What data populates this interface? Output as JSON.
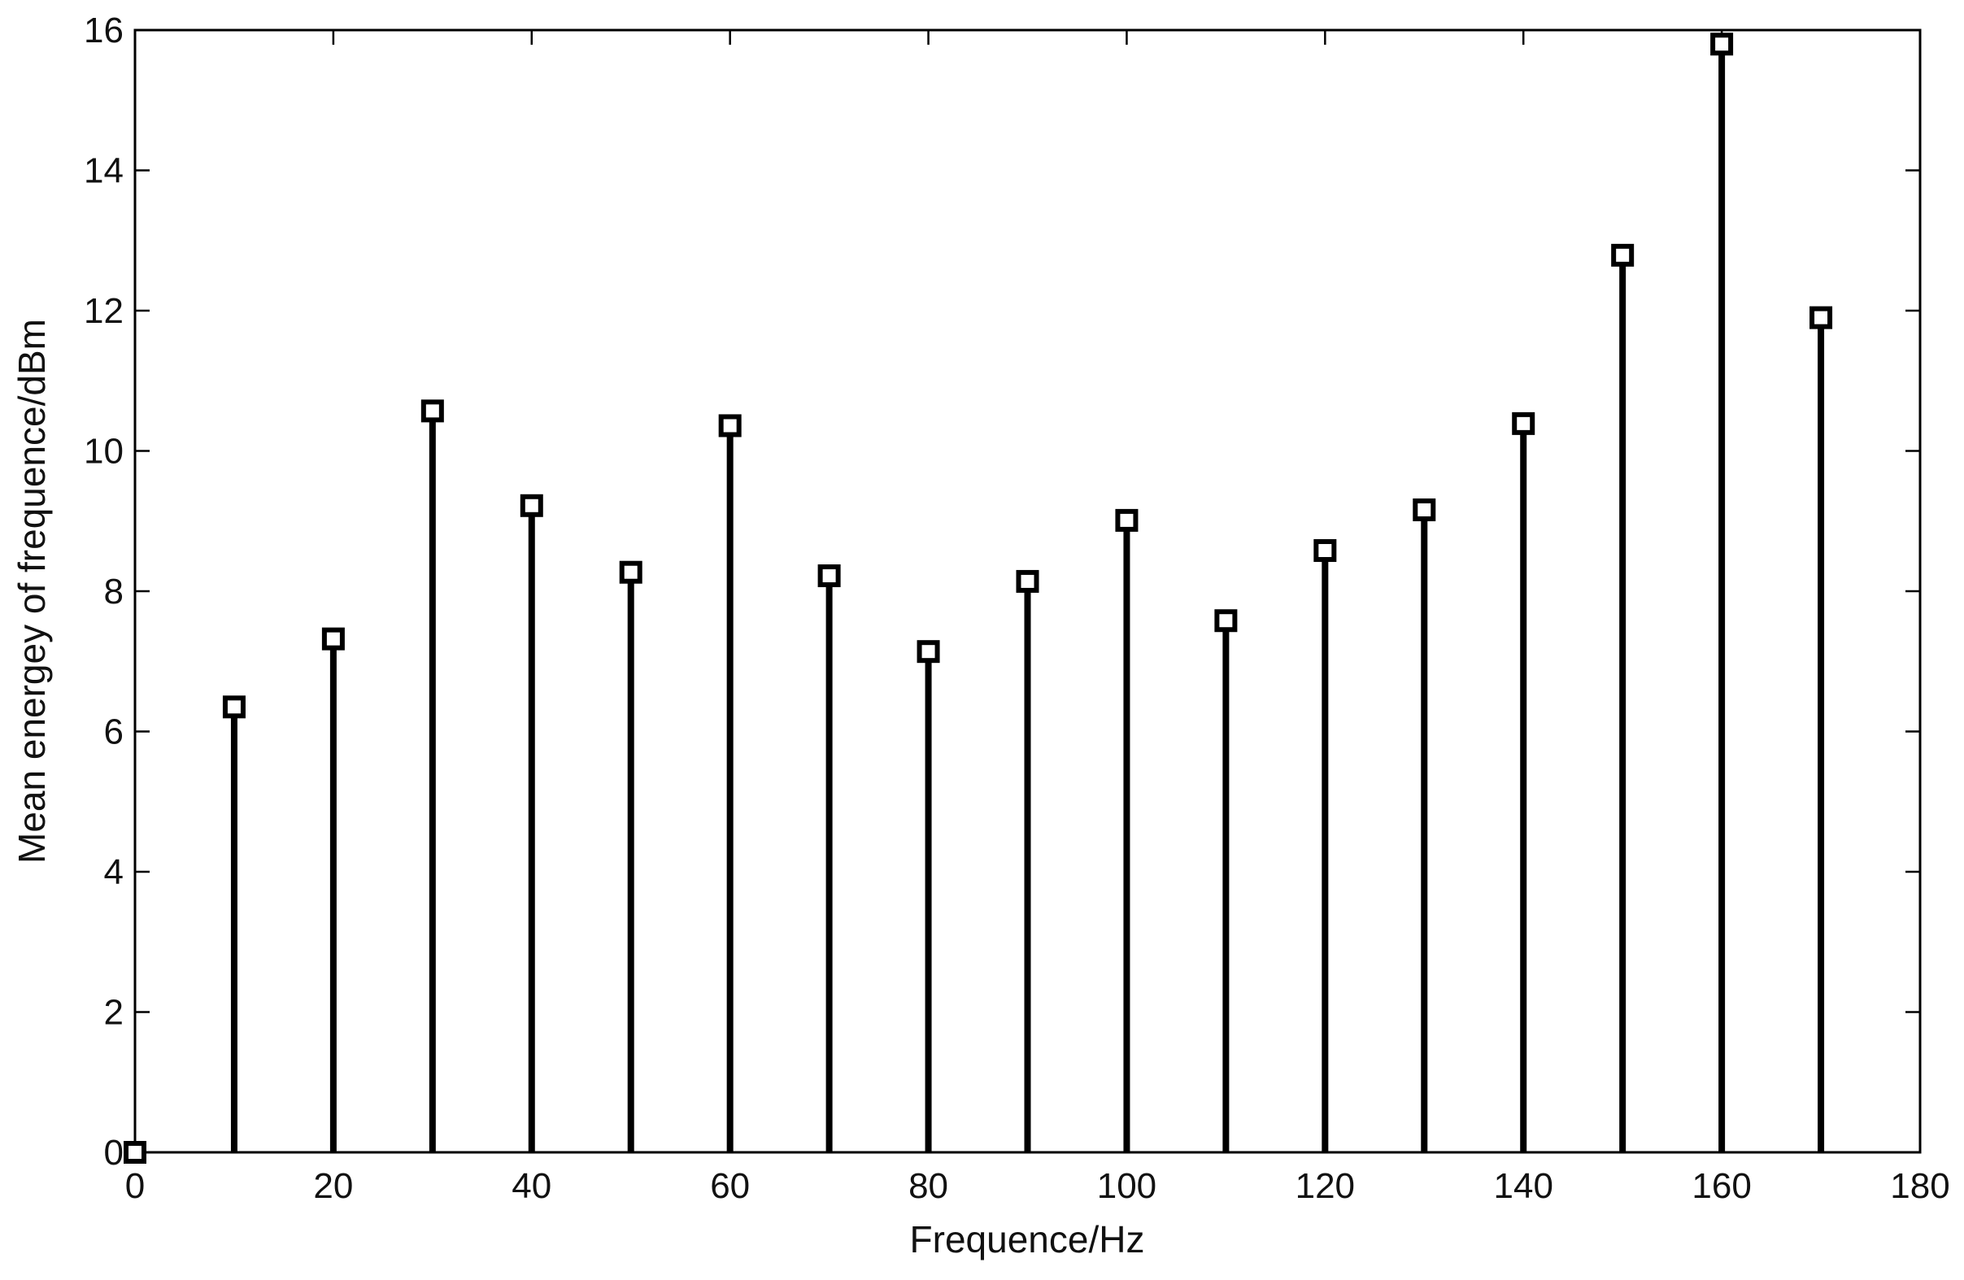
{
  "chart_data": {
    "type": "stem",
    "title": "",
    "xlabel": "Frequence/Hz",
    "ylabel": "Mean energey of frequence/dBm",
    "xlim": [
      0,
      180
    ],
    "ylim": [
      0,
      16
    ],
    "xticks": [
      0,
      20,
      40,
      60,
      80,
      100,
      120,
      140,
      160,
      180
    ],
    "yticks": [
      0,
      2,
      4,
      6,
      8,
      10,
      12,
      14,
      16
    ],
    "grid": false,
    "marker": "square",
    "color": "#000000",
    "x": [
      0,
      10,
      20,
      30,
      40,
      50,
      60,
      70,
      80,
      90,
      100,
      110,
      120,
      130,
      140,
      150,
      160,
      170
    ],
    "values": [
      0,
      6.35,
      7.32,
      10.57,
      9.22,
      8.27,
      10.36,
      8.22,
      7.14,
      8.14,
      9.01,
      7.58,
      8.58,
      9.16,
      10.39,
      12.79,
      15.8,
      11.9
    ]
  }
}
